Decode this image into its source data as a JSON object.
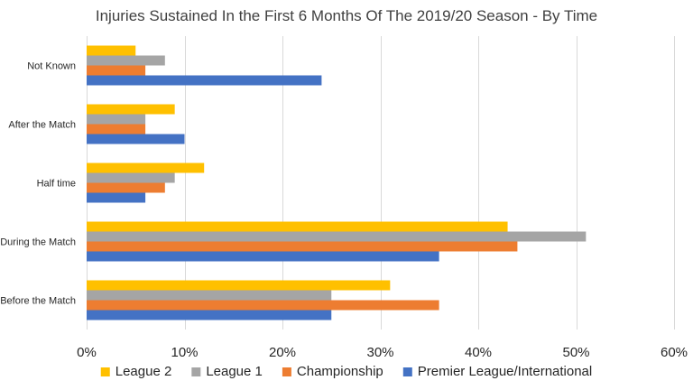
{
  "chart_data": {
    "type": "bar",
    "orientation": "horizontal",
    "title": "Injuries Sustained In the First 6 Months Of The 2019/20 Season - By Time",
    "xlabel": "",
    "ylabel": "",
    "categories": [
      "Not Known",
      "After the Match",
      "Half time",
      "During the Match",
      "Before the Match"
    ],
    "series": [
      {
        "name": "League 2",
        "color": "#FFC000",
        "values": [
          5,
          9,
          12,
          43,
          31
        ]
      },
      {
        "name": "League 1",
        "color": "#A5A5A5",
        "values": [
          8,
          6,
          9,
          51,
          25
        ]
      },
      {
        "name": "Championship",
        "color": "#ED7D31",
        "values": [
          6,
          6,
          8,
          44,
          36
        ]
      },
      {
        "name": "Premier League/International",
        "color": "#4472C4",
        "values": [
          24,
          10,
          6,
          36,
          25
        ]
      }
    ],
    "xlim": [
      0,
      60
    ],
    "xticks": [
      0,
      10,
      20,
      30,
      40,
      50,
      60
    ],
    "xtick_labels": [
      "0%",
      "10%",
      "20%",
      "30%",
      "40%",
      "50%",
      "60%"
    ],
    "value_unit": "%",
    "grid": true,
    "legend_position": "bottom"
  }
}
